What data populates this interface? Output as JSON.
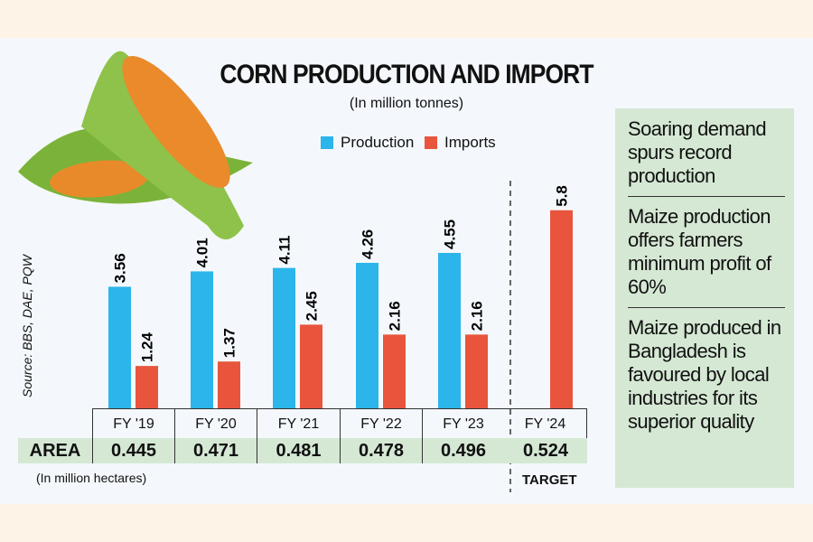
{
  "chart_data": {
    "type": "bar",
    "title": "CORN PRODUCTION AND IMPORT",
    "subtitle": "(In million tonnes)",
    "categories": [
      "FY '19",
      "FY '20",
      "FY '21",
      "FY '22",
      "FY '23",
      "FY '24"
    ],
    "series": [
      {
        "name": "Production",
        "color": "#2bb5ea",
        "values": [
          3.56,
          4.01,
          4.11,
          4.26,
          4.55,
          null
        ],
        "labels": [
          "3.56",
          "4.01",
          "4.11",
          "4.26",
          "4.55",
          ""
        ]
      },
      {
        "name": "Imports",
        "color": "#e8553c",
        "values": [
          1.24,
          1.37,
          2.45,
          2.16,
          2.16,
          5.8
        ],
        "labels": [
          "1.24",
          "1.37",
          "2.45",
          "2.16",
          "2.16",
          "5.8"
        ]
      }
    ],
    "ylim": [
      0,
      6
    ],
    "legend": "top-center",
    "source": "Source: BBS, DAE, PQW",
    "area": {
      "label": "AREA",
      "unit_note": "(In million hectares)",
      "values": [
        "0.445",
        "0.471",
        "0.481",
        "0.478",
        "0.496",
        "0.524"
      ]
    },
    "target_label": "TARGET"
  },
  "side_notes": [
    "Soaring demand spurs record production",
    "Maize production offers farmers minimum profit of 60%",
    "Maize produced in Bangladesh is favoured by local industries for its superior quality"
  ]
}
